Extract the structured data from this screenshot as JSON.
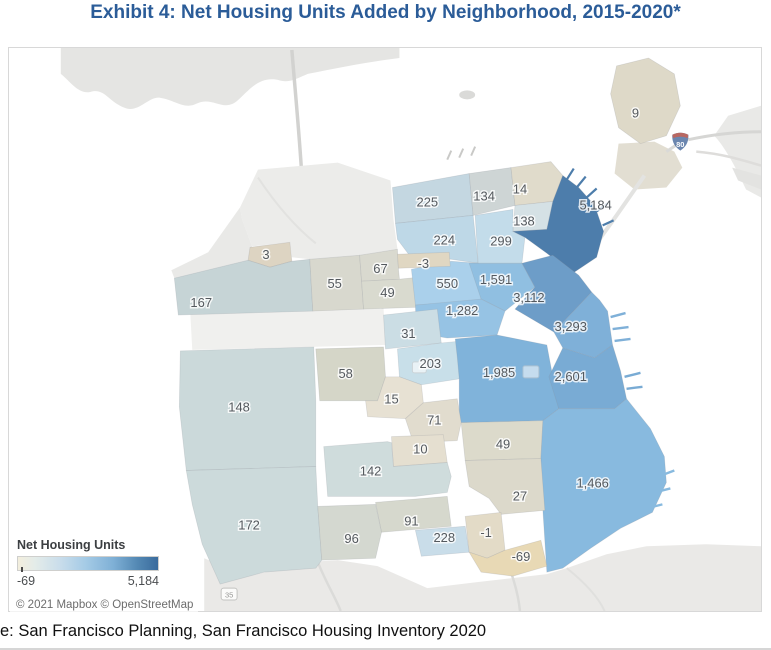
{
  "title": "Exhibit 4: Net Housing Units Added by Neighborhood, 2015-2020*",
  "source_line": "e: San Francisco Planning, San Francisco Housing Inventory 2020",
  "map": {
    "legend": {
      "title": "Net Housing Units",
      "min_label": "-69",
      "max_label": "5,184"
    },
    "attribution": "© 2021 Mapbox © OpenStreetMap",
    "shields": {
      "i80": "80",
      "ca35": "35"
    }
  },
  "colors": {
    "title_text": "#2b5c98",
    "scale_min_color": "#f3eedd",
    "scale_max_color": "#3a6b9d",
    "region_label_text": "#54595e",
    "water": "#ffffff",
    "outside_land": "#e5e5e3"
  },
  "chart_data": {
    "type": "choropleth-map",
    "title": "Net Housing Units Added by Neighborhood, 2015-2020",
    "legend_title": "Net Housing Units",
    "scale_min": -69,
    "scale_max": 5184,
    "regions": [
      {
        "id": "r9",
        "label": "9",
        "value": 9,
        "color": "#ded9c8"
      },
      {
        "id": "r225",
        "label": "225",
        "value": 225,
        "color": "#c4d7e1"
      },
      {
        "id": "r134",
        "label": "134",
        "value": 134,
        "color": "#ced5d5"
      },
      {
        "id": "r14",
        "label": "14",
        "value": 14,
        "color": "#e0dbcb"
      },
      {
        "id": "r138",
        "label": "138",
        "value": 138,
        "color": "#d5e1e5"
      },
      {
        "id": "r224",
        "label": "224",
        "value": 224,
        "color": "#bed8e7"
      },
      {
        "id": "r299",
        "label": "299",
        "value": 299,
        "color": "#c3dcea"
      },
      {
        "id": "r5184",
        "label": "5,184",
        "value": 5184,
        "color": "#4d7dab"
      },
      {
        "id": "r3",
        "label": "3",
        "value": 3,
        "color": "#ddd4c2"
      },
      {
        "id": "r167",
        "label": "167",
        "value": 167,
        "color": "#c6d4d6"
      },
      {
        "id": "r55",
        "label": "55",
        "value": 55,
        "color": "#d8d8ce"
      },
      {
        "id": "r67",
        "label": "67",
        "value": 67,
        "color": "#d9d9cf"
      },
      {
        "id": "r49a",
        "label": "49",
        "value": 49,
        "color": "#d9dacf"
      },
      {
        "id": "r550",
        "label": "550",
        "value": 550,
        "color": "#aad0eb"
      },
      {
        "id": "rn3",
        "label": "-3",
        "value": -3,
        "color": "#e0d7c2"
      },
      {
        "id": "r1591",
        "label": "1,591",
        "value": 1591,
        "color": "#90bfe1"
      },
      {
        "id": "r3112",
        "label": "3,112",
        "value": 3112,
        "color": "#6d9dc8"
      },
      {
        "id": "r1282",
        "label": "1,282",
        "value": 1282,
        "color": "#96c3e4"
      },
      {
        "id": "r3293",
        "label": "3,293",
        "value": 3293,
        "color": "#7fb0d8"
      },
      {
        "id": "r31",
        "label": "31",
        "value": 31,
        "color": "#cbdde4"
      },
      {
        "id": "r203",
        "label": "203",
        "value": 203,
        "color": "#c8dfe9"
      },
      {
        "id": "r58",
        "label": "58",
        "value": 58,
        "color": "#d5d6c8"
      },
      {
        "id": "r148",
        "label": "148",
        "value": 148,
        "color": "#cbd9da"
      },
      {
        "id": "r15",
        "label": "15",
        "value": 15,
        "color": "#e7e1d3"
      },
      {
        "id": "r1985",
        "label": "1,985",
        "value": 1985,
        "color": "#80b3da"
      },
      {
        "id": "r2601",
        "label": "2,601",
        "value": 2601,
        "color": "#79abd4"
      },
      {
        "id": "r71",
        "label": "71",
        "value": 71,
        "color": "#e1dcce"
      },
      {
        "id": "r10",
        "label": "10",
        "value": 10,
        "color": "#e5dfd0"
      },
      {
        "id": "r49b",
        "label": "49",
        "value": 49,
        "color": "#dcdacb"
      },
      {
        "id": "r142",
        "label": "142",
        "value": 142,
        "color": "#cfdcdc"
      },
      {
        "id": "r1466",
        "label": "1,466",
        "value": 1466,
        "color": "#88badf"
      },
      {
        "id": "r27",
        "label": "27",
        "value": 27,
        "color": "#dcd9cb"
      },
      {
        "id": "r172",
        "label": "172",
        "value": 172,
        "color": "#ccdadb"
      },
      {
        "id": "r91",
        "label": "91",
        "value": 91,
        "color": "#d6d8cd"
      },
      {
        "id": "r96",
        "label": "96",
        "value": 96,
        "color": "#d4d8d0"
      },
      {
        "id": "r228",
        "label": "228",
        "value": 228,
        "color": "#c9dde9"
      },
      {
        "id": "rn1",
        "label": "-1",
        "value": -1,
        "color": "#e3dbc7"
      },
      {
        "id": "rn69",
        "label": "-69",
        "value": -69,
        "color": "#e8d9b5"
      }
    ]
  }
}
